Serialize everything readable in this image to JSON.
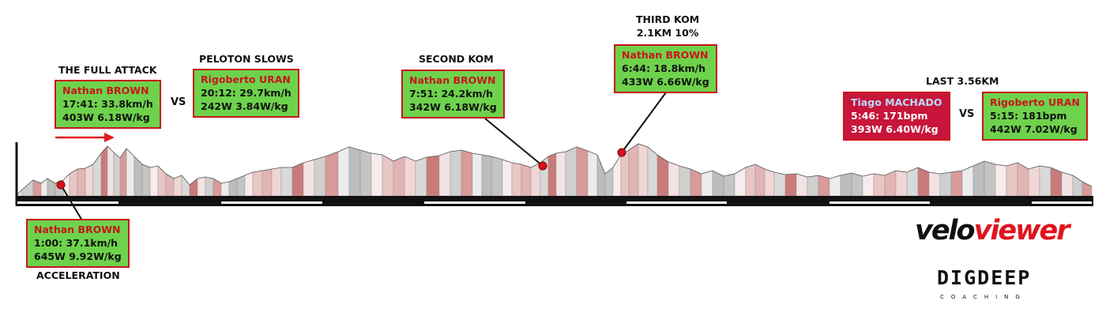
{
  "chart_data": {
    "type": "area",
    "title": "",
    "annotations": [
      {
        "heading": "ACCELERATION",
        "rider": "Nathan BROWN",
        "line1": "1:00: 37.1km/h",
        "line2": "645W 9.92W/kg"
      },
      {
        "heading": "THE FULL ATTACK",
        "rider": "Nathan BROWN",
        "line1": "17:41: 33.8km/h",
        "line2": "403W 6.18W/kg"
      },
      {
        "heading": "PELOTON SLOWS",
        "rider": "Rigoberto URAN",
        "line1": "20:12: 29.7km/h",
        "line2": "242W 3.84W/kg"
      },
      {
        "heading": "SECOND KOM",
        "rider": "Nathan BROWN",
        "line1": "7:51: 24.2km/h",
        "line2": "342W 6.18W/kg"
      },
      {
        "heading_line1": "THIRD KOM",
        "heading_line2": "2.1KM 10%",
        "rider": "Nathan BROWN",
        "line1": "6:44: 18.8km/h",
        "line2": "433W 6.66W/kg"
      },
      {
        "heading": "LAST 3.56KM",
        "rider": "Tiago MACHADO",
        "line1": "5:46: 171bpm",
        "line2": "393W 6.40W/kg"
      },
      {
        "rider": "Rigoberto URAN",
        "line1": "5:15: 181bpm",
        "line2": "442W 7.02W/kg"
      }
    ],
    "vs_label": "VS"
  },
  "branding": {
    "veloviewer_a": "velo",
    "veloviewer_b": "viewer",
    "digdeep": "DIGDEEP",
    "coaching": "COACHING"
  },
  "colors": {
    "box_green": "#6ed24c",
    "box_border": "#c8151b",
    "box_red": "#c8153b",
    "rider_name": "#c8151b",
    "arrow": "#e31b1b"
  }
}
